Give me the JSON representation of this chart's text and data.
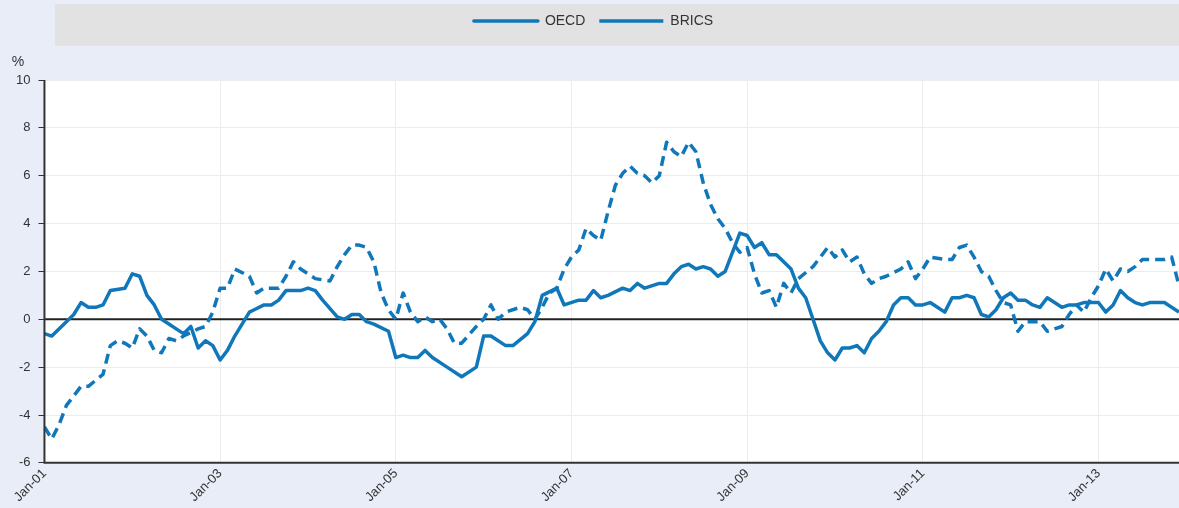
{
  "chart_data": {
    "type": "line",
    "ylabel": "%",
    "legend": "top",
    "grid": true,
    "marker": "none",
    "xlim": [
      "2001-01",
      "2013-12"
    ],
    "xticks": [
      {
        "value": "2001-01",
        "label": "Jan-01"
      },
      {
        "value": "2003-01",
        "label": "Jan-03"
      },
      {
        "value": "2005-01",
        "label": "Jan-05"
      },
      {
        "value": "2007-01",
        "label": "Jan-07"
      },
      {
        "value": "2009-01",
        "label": "Jan-09"
      },
      {
        "value": "2011-01",
        "label": "Jan-11"
      },
      {
        "value": "2013-01",
        "label": "Jan-13"
      }
    ],
    "ylim": [
      -6,
      10
    ],
    "yticks": [
      -6,
      -4,
      -2,
      0,
      2,
      4,
      6,
      8,
      10
    ],
    "ref_lines": [
      {
        "axis": "y",
        "value": 0,
        "color": "#222222"
      }
    ],
    "series": [
      {
        "name": "OECD",
        "color": "#1078ba",
        "line_style": "solid",
        "x": [
          "2001-01",
          "2001-02",
          "2001-04",
          "2001-05",
          "2001-06",
          "2001-07",
          "2001-08",
          "2001-09",
          "2001-10",
          "2001-12",
          "2002-01",
          "2002-02",
          "2002-03",
          "2002-04",
          "2002-05",
          "2002-06",
          "2002-07",
          "2002-08",
          "2002-09",
          "2002-10",
          "2002-11",
          "2002-12",
          "2003-01",
          "2003-02",
          "2003-03",
          "2003-04",
          "2003-05",
          "2003-07",
          "2003-08",
          "2003-09",
          "2003-10",
          "2003-12",
          "2004-01",
          "2004-02",
          "2004-03",
          "2004-05",
          "2004-06",
          "2004-07",
          "2004-08",
          "2004-09",
          "2004-10",
          "2004-12",
          "2005-01",
          "2005-02",
          "2005-03",
          "2005-04",
          "2005-05",
          "2005-06",
          "2005-08",
          "2005-10",
          "2005-12",
          "2006-01",
          "2006-02",
          "2006-04",
          "2006-05",
          "2006-07",
          "2006-08",
          "2006-09",
          "2006-11",
          "2006-12",
          "2007-02",
          "2007-03",
          "2007-04",
          "2007-05",
          "2007-06",
          "2007-08",
          "2007-09",
          "2007-10",
          "2007-11",
          "2008-01",
          "2008-02",
          "2008-03",
          "2008-04",
          "2008-05",
          "2008-06",
          "2008-07",
          "2008-08",
          "2008-09",
          "2008-10",
          "2008-11",
          "2008-12",
          "2009-01",
          "2009-02",
          "2009-03",
          "2009-04",
          "2009-05",
          "2009-07",
          "2009-08",
          "2009-09",
          "2009-10",
          "2009-11",
          "2009-12",
          "2010-01",
          "2010-02",
          "2010-03",
          "2010-04",
          "2010-05",
          "2010-06",
          "2010-07",
          "2010-08",
          "2010-09",
          "2010-10",
          "2010-11",
          "2010-12",
          "2011-01",
          "2011-02",
          "2011-03",
          "2011-04",
          "2011-05",
          "2011-06",
          "2011-07",
          "2011-08",
          "2011-09",
          "2011-10",
          "2011-11",
          "2011-12",
          "2012-01",
          "2012-02",
          "2012-03",
          "2012-04",
          "2012-05",
          "2012-06",
          "2012-07",
          "2012-08",
          "2012-09",
          "2012-10",
          "2012-11",
          "2012-12",
          "2013-01",
          "2013-02",
          "2013-03",
          "2013-04",
          "2013-05",
          "2013-06",
          "2013-07",
          "2013-08",
          "2013-09",
          "2013-10",
          "2013-12"
        ],
        "values": [
          -0.6,
          -0.7,
          -0.1,
          0.2,
          0.7,
          0.5,
          0.5,
          0.6,
          1.2,
          1.3,
          1.9,
          1.8,
          1.0,
          0.6,
          0.0,
          -0.2,
          -0.4,
          -0.6,
          -0.3,
          -1.2,
          -0.9,
          -1.1,
          -1.7,
          -1.3,
          -0.7,
          -0.2,
          0.3,
          0.6,
          0.6,
          0.8,
          1.2,
          1.2,
          1.3,
          1.2,
          0.8,
          0.1,
          0.0,
          0.2,
          0.2,
          -0.1,
          -0.2,
          -0.5,
          -1.6,
          -1.5,
          -1.6,
          -1.6,
          -1.3,
          -1.6,
          -2.0,
          -2.4,
          -2.0,
          -0.7,
          -0.7,
          -1.1,
          -1.1,
          -0.6,
          -0.1,
          1.0,
          1.3,
          0.6,
          0.8,
          0.8,
          1.2,
          0.9,
          1.0,
          1.3,
          1.2,
          1.5,
          1.3,
          1.5,
          1.5,
          1.9,
          2.2,
          2.3,
          2.1,
          2.2,
          2.1,
          1.8,
          2.0,
          2.8,
          3.6,
          3.5,
          3.0,
          3.2,
          2.7,
          2.7,
          2.1,
          1.3,
          0.9,
          0.0,
          -0.9,
          -1.4,
          -1.7,
          -1.2,
          -1.2,
          -1.1,
          -1.4,
          -0.8,
          -0.5,
          -0.1,
          0.6,
          0.9,
          0.9,
          0.6,
          0.6,
          0.7,
          0.5,
          0.3,
          0.9,
          0.9,
          1.0,
          0.9,
          0.2,
          0.1,
          0.4,
          0.9,
          1.1,
          0.8,
          0.8,
          0.6,
          0.5,
          0.9,
          0.7,
          0.5,
          0.6,
          0.6,
          0.7,
          0.7,
          0.7,
          0.3,
          0.6,
          1.2,
          0.9,
          0.7,
          0.6,
          0.7,
          0.7,
          0.7,
          0.3
        ]
      },
      {
        "name": "BRICS",
        "color": "#1078ba",
        "line_style": "dashed",
        "x": [
          "2001-01",
          "2001-02",
          "2001-03",
          "2001-04",
          "2001-06",
          "2001-07",
          "2001-09",
          "2001-10",
          "2001-11",
          "2001-12",
          "2002-01",
          "2002-02",
          "2002-03",
          "2002-04",
          "2002-05",
          "2002-06",
          "2002-07",
          "2002-08",
          "2002-10",
          "2002-11",
          "2002-12",
          "2003-01",
          "2003-02",
          "2003-03",
          "2003-05",
          "2003-06",
          "2003-07",
          "2003-09",
          "2003-10",
          "2003-11",
          "2003-12",
          "2004-02",
          "2004-04",
          "2004-05",
          "2004-06",
          "2004-07",
          "2004-08",
          "2004-09",
          "2004-10",
          "2004-11",
          "2004-12",
          "2005-01",
          "2005-02",
          "2005-03",
          "2005-04",
          "2005-05",
          "2005-06",
          "2005-07",
          "2005-08",
          "2005-09",
          "2005-10",
          "2005-12",
          "2006-01",
          "2006-02",
          "2006-03",
          "2006-04",
          "2006-06",
          "2006-07",
          "2006-08",
          "2006-09",
          "2006-10",
          "2006-11",
          "2006-12",
          "2007-01",
          "2007-02",
          "2007-03",
          "2007-04",
          "2007-05",
          "2007-06",
          "2007-07",
          "2007-08",
          "2007-09",
          "2007-10",
          "2007-11",
          "2007-12",
          "2008-01",
          "2008-02",
          "2008-03",
          "2008-04",
          "2008-05",
          "2008-06",
          "2008-07",
          "2008-08",
          "2008-09",
          "2008-10",
          "2008-11",
          "2008-12",
          "2009-01",
          "2009-02",
          "2009-03",
          "2009-04",
          "2009-05",
          "2009-06",
          "2009-07",
          "2009-08",
          "2009-10",
          "2009-11",
          "2009-12",
          "2010-01",
          "2010-02",
          "2010-03",
          "2010-04",
          "2010-05",
          "2010-06",
          "2010-07",
          "2010-08",
          "2010-10",
          "2010-11",
          "2010-12",
          "2011-01",
          "2011-02",
          "2011-04",
          "2011-05",
          "2011-06",
          "2011-07",
          "2011-08",
          "2011-09",
          "2011-10",
          "2011-11",
          "2011-12",
          "2012-01",
          "2012-02",
          "2012-03",
          "2012-05",
          "2012-06",
          "2012-08",
          "2012-09",
          "2012-10",
          "2012-11",
          "2012-12",
          "2013-01",
          "2013-02",
          "2013-03",
          "2013-04",
          "2013-05",
          "2013-06",
          "2013-07",
          "2013-09",
          "2013-10",
          "2013-11",
          "2013-12"
        ],
        "values": [
          -4.5,
          -5.0,
          -4.4,
          -3.6,
          -2.8,
          -2.8,
          -2.3,
          -1.1,
          -0.9,
          -1.0,
          -1.2,
          -0.4,
          -0.7,
          -1.3,
          -1.4,
          -0.8,
          -0.9,
          -0.7,
          -0.4,
          -0.3,
          0.3,
          1.3,
          1.3,
          2.1,
          1.8,
          1.1,
          1.3,
          1.3,
          1.8,
          2.4,
          2.1,
          1.7,
          1.6,
          2.2,
          2.7,
          3.1,
          3.1,
          3.0,
          2.4,
          1.1,
          0.4,
          0.0,
          1.1,
          0.3,
          -0.1,
          0.1,
          -0.1,
          0.0,
          -0.4,
          -1.0,
          -1.0,
          -0.3,
          0.0,
          0.6,
          0.0,
          0.3,
          0.5,
          0.4,
          0.0,
          0.5,
          1.1,
          1.3,
          2.1,
          2.6,
          2.9,
          3.8,
          3.5,
          3.3,
          4.5,
          5.6,
          6.1,
          6.4,
          6.1,
          6.0,
          5.7,
          6.0,
          7.4,
          7.0,
          6.8,
          7.4,
          7.0,
          5.7,
          4.8,
          4.2,
          3.8,
          3.2,
          2.8,
          3.0,
          1.9,
          1.1,
          1.2,
          0.5,
          1.5,
          1.1,
          1.7,
          2.2,
          2.6,
          3.0,
          2.6,
          2.9,
          2.4,
          2.6,
          1.9,
          1.5,
          1.7,
          1.8,
          2.1,
          2.4,
          1.7,
          2.1,
          2.6,
          2.5,
          2.5,
          3.0,
          3.1,
          2.6,
          2.0,
          1.8,
          1.2,
          0.7,
          0.6,
          -0.5,
          -0.1,
          -0.1,
          -0.5,
          -0.3,
          0.2,
          0.6,
          0.3,
          0.9,
          1.4,
          2.1,
          1.6,
          2.1,
          2.0,
          2.2,
          2.5,
          2.5,
          2.5,
          2.6,
          1.4
        ]
      }
    ]
  }
}
